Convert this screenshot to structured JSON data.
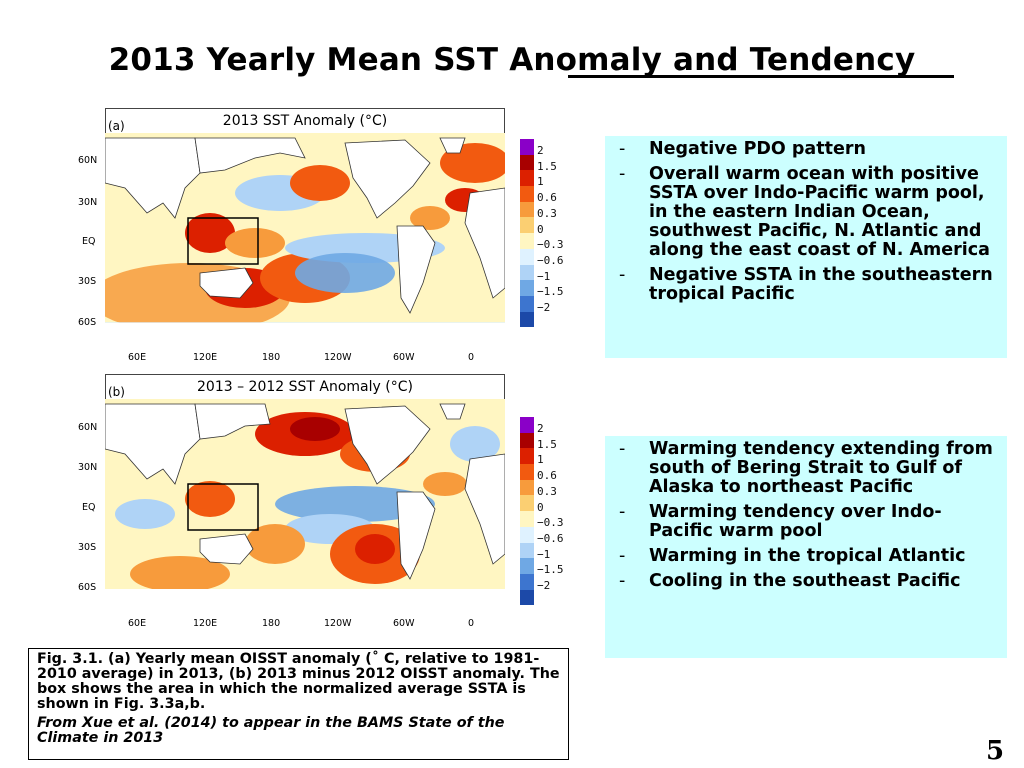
{
  "slide": {
    "title": "2013 Yearly Mean SST Anomaly and Tendency",
    "page_number": "5"
  },
  "panel_a": {
    "label": "(a)",
    "map_title": "2013 SST Anomaly (°C)"
  },
  "panel_b": {
    "label": "(b)",
    "map_title": "2013 – 2012 SST Anomaly (°C)"
  },
  "axes": {
    "lat_labels": [
      "60N",
      "30N",
      "EQ",
      "30S",
      "60S"
    ],
    "lon_labels": [
      "60E",
      "120E",
      "180",
      "120W",
      "60W",
      "0"
    ]
  },
  "colorbar": {
    "labels": [
      "2",
      "1.5",
      "1",
      "0.6",
      "0.3",
      "0",
      "−0.3",
      "−0.6",
      "−1",
      "−1.5",
      "−2"
    ],
    "colors": [
      "#8a00c8",
      "#a80000",
      "#dc2000",
      "#f25a10",
      "#f79b3c",
      "#fbcf72",
      "#fff6c2",
      "#dff2ff",
      "#afd3f6",
      "#6fa8e4",
      "#3d75cf",
      "#1c49a8"
    ]
  },
  "bullets_top": {
    "items": [
      "Negative PDO pattern",
      "Overall warm ocean with positive SSTA over Indo-Pacific warm pool, in the eastern Indian Ocean, southwest Pacific, N. Atlantic and along the east coast of N. America",
      "Negative SSTA in the southeastern tropical Pacific"
    ]
  },
  "bullets_bottom": {
    "items": [
      "Warming tendency extending from south of Bering Strait to Gulf of Alaska to northeast Pacific",
      "Warming tendency over Indo-Pacific warm pool",
      "Warming in the tropical Atlantic",
      "Cooling in the southeast Pacific"
    ]
  },
  "caption": {
    "main": "Fig. 3.1.  (a) Yearly mean OISST anomaly (˚ C, relative to 1981-2010 average) in 2013, (b) 2013 minus 2012 OISST anomaly. The box shows the area in which the normalized average SSTA is shown in Fig. 3.3a,b.",
    "source": "From Xue et al. (2014) to appear in the BAMS State of the Climate in 2013"
  }
}
